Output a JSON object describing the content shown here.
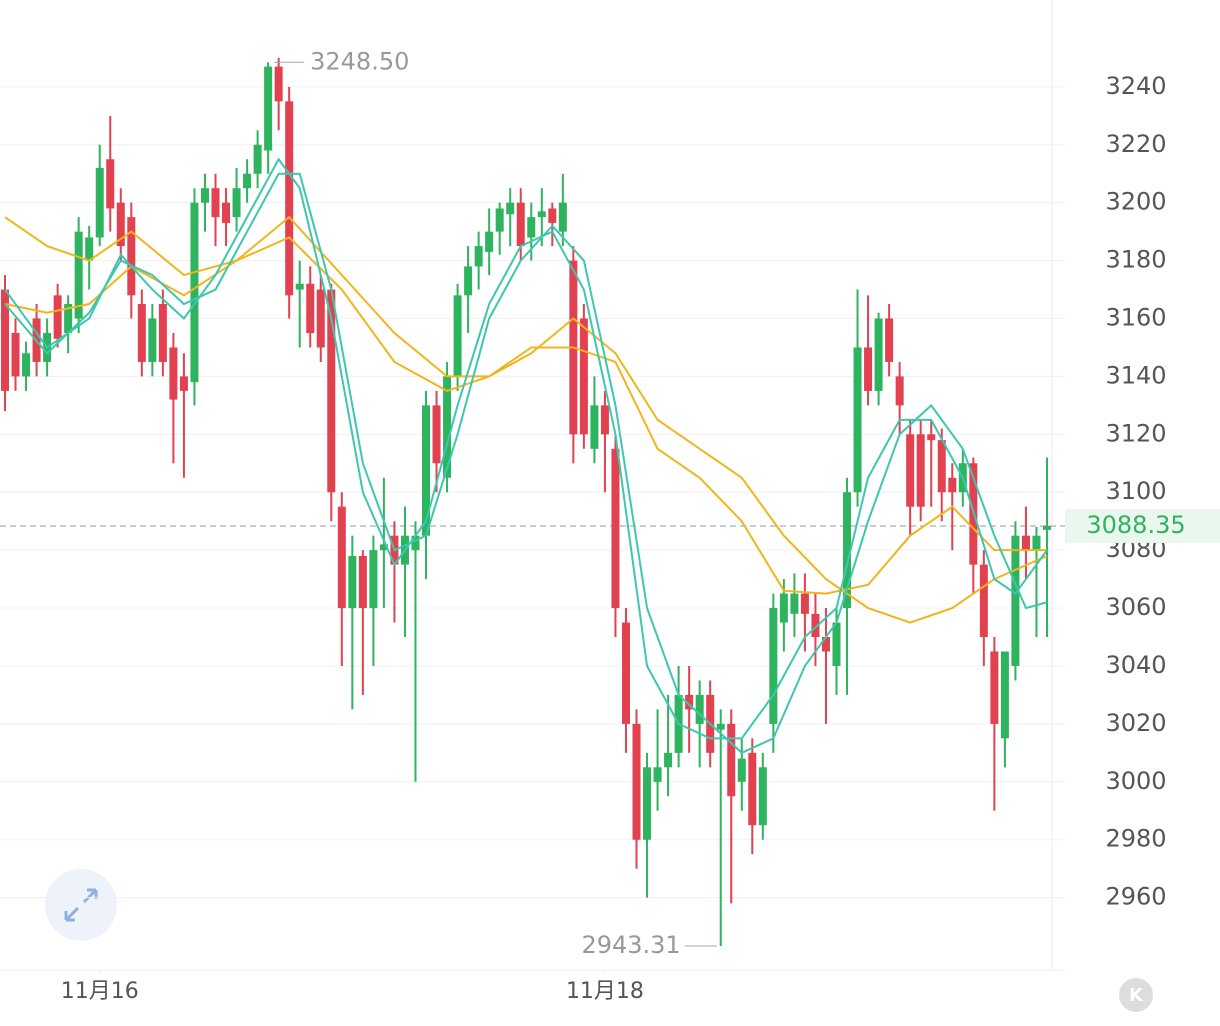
{
  "chart_data": {
    "type": "candlestick",
    "x": [
      0,
      1,
      2,
      3,
      4,
      5,
      6,
      7,
      8,
      9,
      10,
      11,
      12,
      13,
      14,
      15,
      16,
      17,
      18,
      19,
      20,
      21,
      22,
      23,
      24,
      25,
      26,
      27,
      28,
      29,
      30,
      31,
      32,
      33,
      34,
      35,
      36,
      37,
      38,
      39,
      40,
      41,
      42,
      43,
      44,
      45,
      46,
      47,
      48,
      49,
      50,
      51,
      52,
      53,
      54,
      55,
      56,
      57,
      58,
      59,
      60,
      61,
      62,
      63,
      64,
      65,
      66,
      67,
      68,
      69,
      70,
      71,
      72,
      73,
      74,
      75,
      76,
      77,
      78,
      79,
      80,
      81,
      82,
      83,
      84,
      85,
      86,
      87,
      88,
      89,
      90,
      91,
      92,
      93,
      94,
      95,
      96,
      97,
      98,
      99
    ],
    "open": [
      3170,
      3155,
      3140,
      3160,
      3145,
      3168,
      3155,
      3160,
      3180,
      3188,
      3215,
      3200,
      3195,
      3165,
      3145,
      3165,
      3150,
      3140,
      3138,
      3200,
      3205,
      3200,
      3195,
      3205,
      3210,
      3218,
      3247,
      3235,
      3170,
      3172,
      3170,
      3170,
      3095,
      3060,
      3078,
      3060,
      3080,
      3085,
      3075,
      3080,
      3085,
      3130,
      3105,
      3140,
      3168,
      3178,
      3183,
      3190,
      3196,
      3200,
      3188,
      3195,
      3198,
      3190,
      3180,
      3160,
      3115,
      3130,
      3115,
      3055,
      3020,
      2980,
      3000,
      3005,
      3010,
      3030,
      3020,
      3030,
      3018,
      3020,
      3000,
      3010,
      2985,
      3020,
      3055,
      3058,
      3065,
      3058,
      3050,
      3040,
      3060,
      3100,
      3150,
      3135,
      3160,
      3140,
      3120,
      3120,
      3120,
      3118,
      3105,
      3100,
      3110,
      3075,
      3045,
      3015,
      3040,
      3085,
      3080,
      3087
    ],
    "high": [
      3175,
      3160,
      3152,
      3165,
      3160,
      3172,
      3168,
      3195,
      3192,
      3220,
      3230,
      3205,
      3200,
      3170,
      3165,
      3170,
      3155,
      3148,
      3205,
      3210,
      3210,
      3205,
      3212,
      3215,
      3225,
      3248.5,
      3250,
      3240,
      3180,
      3178,
      3175,
      3172,
      3100,
      3085,
      3080,
      3085,
      3105,
      3090,
      3095,
      3090,
      3135,
      3135,
      3145,
      3172,
      3185,
      3190,
      3198,
      3200,
      3205,
      3205,
      3200,
      3205,
      3200,
      3210,
      3185,
      3165,
      3140,
      3135,
      3120,
      3060,
      3025,
      3010,
      3025,
      3030,
      3040,
      3040,
      3035,
      3035,
      3025,
      3025,
      3015,
      3015,
      3010,
      3065,
      3070,
      3072,
      3072,
      3065,
      3060,
      3060,
      3105,
      3170,
      3168,
      3162,
      3165,
      3145,
      3125,
      3125,
      3125,
      3122,
      3110,
      3115,
      3112,
      3080,
      3050,
      3045,
      3090,
      3095,
      3088,
      3112
    ],
    "low": [
      3128,
      3135,
      3135,
      3140,
      3140,
      3150,
      3148,
      3155,
      3170,
      3185,
      3190,
      3180,
      3160,
      3140,
      3140,
      3140,
      3110,
      3105,
      3130,
      3190,
      3185,
      3185,
      3190,
      3200,
      3205,
      3210,
      3225,
      3160,
      3150,
      3150,
      3145,
      3090,
      3040,
      3025,
      3030,
      3040,
      3060,
      3055,
      3050,
      3000,
      3070,
      3100,
      3100,
      3135,
      3155,
      3170,
      3175,
      3182,
      3185,
      3180,
      3180,
      3185,
      3185,
      3185,
      3110,
      3115,
      3110,
      3100,
      3050,
      3010,
      2970,
      2960,
      2990,
      2995,
      3005,
      3010,
      3005,
      3005,
      2943.31,
      2958,
      2990,
      2975,
      2980,
      3010,
      3045,
      3050,
      3045,
      3040,
      3020,
      3030,
      3030,
      3095,
      3130,
      3130,
      3140,
      3120,
      3085,
      3090,
      3095,
      3090,
      3080,
      3095,
      3065,
      3040,
      2990,
      3005,
      3035,
      3070,
      3050,
      3050
    ],
    "close": [
      3135,
      3140,
      3148,
      3145,
      3155,
      3153,
      3165,
      3190,
      3188,
      3212,
      3198,
      3185,
      3168,
      3145,
      3160,
      3145,
      3132,
      3135,
      3200,
      3205,
      3195,
      3193,
      3205,
      3210,
      3220,
      3247,
      3235,
      3168,
      3172,
      3155,
      3150,
      3100,
      3060,
      3078,
      3060,
      3080,
      3082,
      3075,
      3085,
      3085,
      3130,
      3110,
      3140,
      3168,
      3178,
      3185,
      3190,
      3198,
      3200,
      3185,
      3195,
      3197,
      3193,
      3200,
      3120,
      3120,
      3130,
      3120,
      3060,
      3020,
      2980,
      3005,
      3005,
      3010,
      3030,
      3025,
      3030,
      3010,
      3020,
      2995,
      3008,
      2985,
      3005,
      3060,
      3065,
      3065,
      3058,
      3050,
      3045,
      3055,
      3100,
      3150,
      3135,
      3160,
      3145,
      3130,
      3095,
      3095,
      3118,
      3100,
      3100,
      3110,
      3075,
      3050,
      3020,
      3045,
      3085,
      3080,
      3085,
      3088.35
    ],
    "up_color": "#2eb35f",
    "down_color": "#e2414f",
    "lines": [
      {
        "color": "#f1b51c",
        "x": [
          0,
          4,
          8,
          12,
          17,
          22,
          27,
          32,
          37,
          42,
          46,
          50,
          54,
          58,
          62,
          66,
          70,
          74,
          78,
          82,
          86,
          90,
          94,
          99
        ],
        "values": [
          3195,
          3185,
          3180,
          3190,
          3175,
          3180,
          3195,
          3175,
          3155,
          3140,
          3140,
          3148,
          3160,
          3148,
          3125,
          3115,
          3105,
          3085,
          3070,
          3060,
          3055,
          3060,
          3070,
          3078
        ]
      },
      {
        "color": "#f1b51c",
        "x": [
          0,
          4,
          8,
          12,
          17,
          22,
          27,
          32,
          37,
          42,
          46,
          50,
          54,
          58,
          62,
          66,
          70,
          74,
          78,
          82,
          86,
          90,
          94,
          99
        ],
        "values": [
          3165,
          3162,
          3165,
          3178,
          3168,
          3180,
          3188,
          3170,
          3145,
          3135,
          3140,
          3150,
          3150,
          3145,
          3115,
          3105,
          3090,
          3066,
          3065,
          3068,
          3085,
          3095,
          3080,
          3080
        ]
      },
      {
        "color": "#3cc7ae",
        "x": [
          0,
          4,
          8,
          11,
          14,
          17,
          20,
          23,
          26,
          28,
          31,
          34,
          37,
          40,
          43,
          46,
          49,
          52,
          55,
          58,
          61,
          64,
          67,
          70,
          73,
          76,
          79,
          82,
          85,
          88,
          91,
          94,
          96,
          99
        ],
        "values": [
          3170,
          3150,
          3160,
          3182,
          3170,
          3160,
          3175,
          3195,
          3215,
          3205,
          3160,
          3100,
          3075,
          3090,
          3130,
          3165,
          3185,
          3190,
          3170,
          3120,
          3040,
          3020,
          3015,
          3015,
          3030,
          3050,
          3060,
          3105,
          3125,
          3125,
          3105,
          3070,
          3065,
          3080
        ]
      },
      {
        "color": "#3cc7ae",
        "x": [
          0,
          4,
          8,
          11,
          14,
          17,
          20,
          23,
          26,
          28,
          31,
          34,
          37,
          40,
          43,
          46,
          49,
          52,
          55,
          58,
          61,
          64,
          67,
          70,
          73,
          76,
          79,
          82,
          85,
          88,
          91,
          94,
          97,
          99
        ],
        "values": [
          3165,
          3148,
          3162,
          3180,
          3175,
          3165,
          3170,
          3190,
          3210,
          3210,
          3170,
          3110,
          3080,
          3085,
          3120,
          3160,
          3180,
          3192,
          3180,
          3130,
          3060,
          3030,
          3020,
          3010,
          3015,
          3040,
          3055,
          3090,
          3120,
          3130,
          3115,
          3085,
          3060,
          3062
        ]
      }
    ],
    "max_label": {
      "value": 3248.5,
      "label": "3248.50"
    },
    "min_label": 2943.31,
    "last_price": 3088.35,
    "xlim": [
      -0.5,
      100.5
    ],
    "xticks": [
      {
        "value": 9,
        "label": "11月16"
      },
      {
        "value": 57,
        "label": "11月18"
      }
    ],
    "ylim": [
      2935,
      3270
    ],
    "yticks": [
      2960,
      2980,
      3000,
      3020,
      3040,
      3060,
      3080,
      3100,
      3120,
      3140,
      3160,
      3180,
      3200,
      3220,
      3240
    ],
    "grid": true
  },
  "logo": "K"
}
